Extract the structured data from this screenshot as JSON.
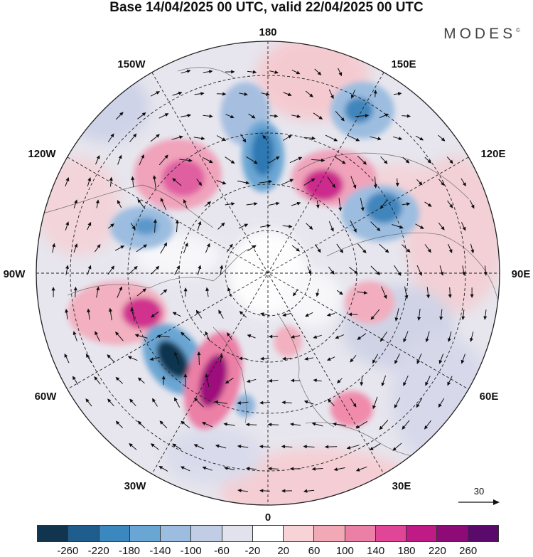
{
  "title": "Base 14/04/2025 00 UTC, valid 22/04/2025 00 UTC",
  "brand": "MODES",
  "brand_mark": "©",
  "map": {
    "projection": "north-polar-stereographic",
    "longitude_labels": {
      "top": "180",
      "top_left": "150W",
      "top_right": "150E",
      "upper_left": "120W",
      "upper_right": "120E",
      "left": "90W",
      "right": "90E",
      "lower_left": "60W",
      "lower_right": "60E",
      "bottom_left": "30W",
      "bottom_right": "30E",
      "bottom": "0"
    },
    "vector_reference": {
      "label": "30"
    }
  },
  "colorbar": {
    "colors": [
      "#11344f",
      "#1e5d8c",
      "#3a88bf",
      "#6aa6d3",
      "#9cbde0",
      "#c1cde4",
      "#e2e2ef",
      "#ffffff",
      "#f7d2d6",
      "#f2a9b6",
      "#ec7fa6",
      "#e04597",
      "#bf1a85",
      "#8e0a76",
      "#5a0a6b"
    ],
    "tick_labels": [
      "-260",
      "-220",
      "-180",
      "-140",
      "-100",
      "-60",
      "-20",
      "20",
      "60",
      "100",
      "140",
      "180",
      "220",
      "260"
    ]
  }
}
